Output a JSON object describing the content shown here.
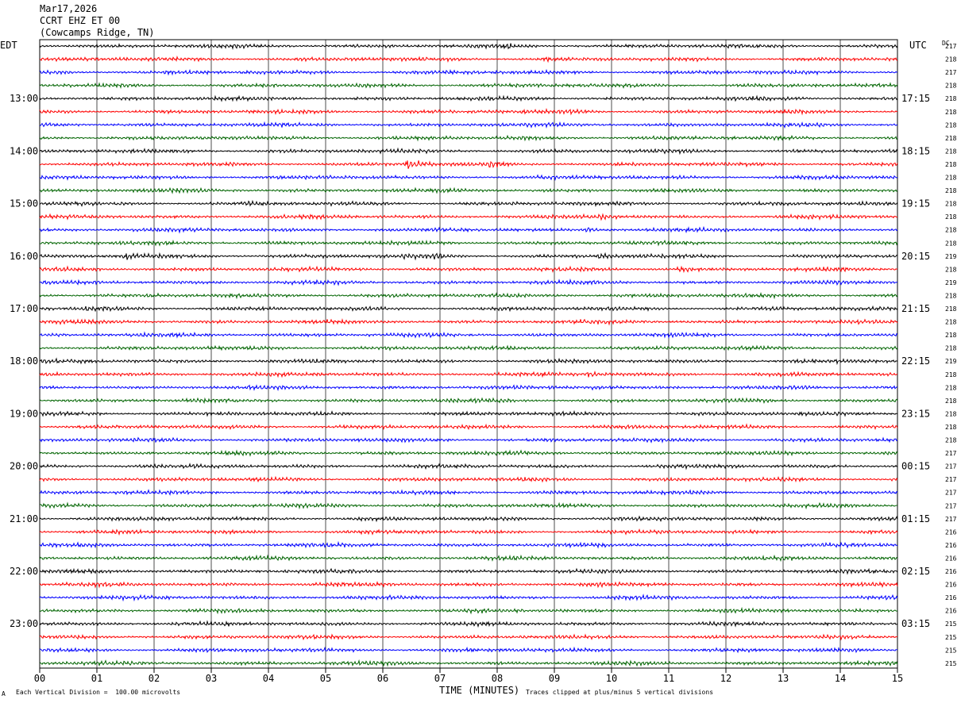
{
  "header": {
    "date": "Mar17,2026",
    "station": "CCRT EHZ ET 00",
    "location": "(Cowcamps Ridge, TN)"
  },
  "left_axis_title": "EDT",
  "right_axis_title": "UTC",
  "dc_title": "DC",
  "footer": {
    "scale_note": "Each Vertical Division =  100.00 microvolts",
    "xlabel": "TIME (MINUTES)",
    "clip_note": "Traces clipped at plus/minus 5 vertical divisions",
    "corner_mark": "A"
  },
  "chart_data": {
    "type": "line",
    "xlabel": "TIME (MINUTES)",
    "xlim": [
      0,
      15
    ],
    "x_ticks": [
      "00",
      "01",
      "02",
      "03",
      "04",
      "05",
      "06",
      "07",
      "08",
      "09",
      "10",
      "11",
      "12",
      "13",
      "14",
      "15"
    ],
    "trace_interval_minutes": 15,
    "trace_colors": [
      "#000000",
      "#ff0000",
      "#0000ff",
      "#006400"
    ],
    "left_time_labels": [
      "",
      "13:00",
      "14:00",
      "15:00",
      "16:00",
      "17:00",
      "18:00",
      "19:00",
      "20:00",
      "21:00",
      "22:00",
      "23:00"
    ],
    "right_time_labels": [
      "",
      "17:15",
      "18:15",
      "19:15",
      "20:15",
      "21:15",
      "22:15",
      "23:15",
      "00:15",
      "01:15",
      "02:15",
      "03:15"
    ],
    "dc_offsets": [
      217,
      218,
      217,
      218,
      218,
      218,
      218,
      218,
      218,
      218,
      218,
      218,
      218,
      218,
      218,
      218,
      219,
      218,
      219,
      218,
      218,
      218,
      218,
      218,
      219,
      218,
      218,
      218,
      218,
      218,
      218,
      217,
      217,
      217,
      217,
      217,
      217,
      216,
      216,
      216,
      216,
      216,
      216,
      216,
      215,
      215,
      215,
      215
    ],
    "clipped_divisions": 5,
    "units_per_division": "100.00 microvolts",
    "events": [
      {
        "trace": 0,
        "minute": 8.1,
        "amplitude": 1.5
      },
      {
        "trace": 1,
        "minute": 8.8,
        "amplitude": 1.5
      },
      {
        "trace": 5,
        "minute": 9.3,
        "amplitude": 1.6
      },
      {
        "trace": 9,
        "minute": 6.45,
        "amplitude": 4.5
      },
      {
        "trace": 9,
        "minute": 7.9,
        "amplitude": 1.8
      },
      {
        "trace": 12,
        "minute": 3.6,
        "amplitude": 1.5
      },
      {
        "trace": 13,
        "minute": 9.8,
        "amplitude": 1.8
      },
      {
        "trace": 14,
        "minute": 9.6,
        "amplitude": 2.2
      },
      {
        "trace": 16,
        "minute": 1.5,
        "amplitude": 2.8
      },
      {
        "trace": 16,
        "minute": 6.4,
        "amplitude": 2.0
      },
      {
        "trace": 16,
        "minute": 6.9,
        "amplitude": 2.4
      },
      {
        "trace": 16,
        "minute": 9.8,
        "amplitude": 2.0
      },
      {
        "trace": 17,
        "minute": 11.2,
        "amplitude": 1.8
      },
      {
        "trace": 20,
        "minute": 0.8,
        "amplitude": 2.0
      },
      {
        "trace": 25,
        "minute": 9.6,
        "amplitude": 1.6
      },
      {
        "trace": 26,
        "minute": 9.7,
        "amplitude": 1.5
      }
    ]
  }
}
